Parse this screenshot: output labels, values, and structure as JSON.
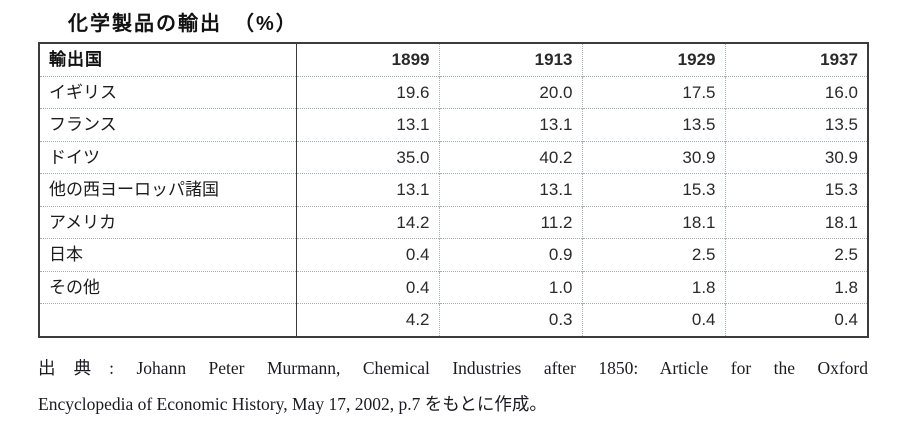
{
  "page": {
    "title": "化学製品の輸出　（%）"
  },
  "table": {
    "header": {
      "country": "輸出国",
      "years": [
        "1899",
        "1913",
        "1929",
        "1937"
      ]
    },
    "rows": [
      {
        "label": "イギリス",
        "values": [
          "19.6",
          "20.0",
          "17.5",
          "16.0"
        ]
      },
      {
        "label": "フランス",
        "values": [
          "13.1",
          "13.1",
          "13.5",
          "13.5"
        ]
      },
      {
        "label": "ドイツ",
        "values": [
          "35.0",
          "40.2",
          "30.9",
          "30.9"
        ]
      },
      {
        "label": "他の西ヨーロッパ諸国",
        "values": [
          "13.1",
          "13.1",
          "15.3",
          "15.3"
        ]
      },
      {
        "label": "アメリカ",
        "values": [
          "14.2",
          "11.2",
          "18.1",
          "18.1"
        ]
      },
      {
        "label": "日本",
        "values": [
          "0.4",
          "0.9",
          "2.5",
          "2.5"
        ]
      },
      {
        "label": "その他",
        "values": [
          "0.4",
          "1.0",
          "1.8",
          "1.8"
        ]
      },
      {
        "label": "",
        "values": [
          "4.2",
          "0.3",
          "0.4",
          "0.4"
        ]
      }
    ]
  },
  "source": {
    "line1": "出典: Johann Peter Murmann, Chemical Industries after 1850: Article for the Oxford",
    "line2": "Encyclopedia of Economic History, May 17, 2002, p.7 をもとに作成。"
  },
  "colors": {
    "text": "#1c1c1c",
    "outer_border": "#3c3c3c",
    "dotted_grid": "#a9b2ba",
    "background": "#ffffff"
  },
  "chart_data": {
    "type": "table",
    "title": "化学製品の輸出（%）",
    "categories": [
      "1899",
      "1913",
      "1929",
      "1937"
    ],
    "series": [
      {
        "name": "イギリス",
        "values": [
          19.6,
          20.0,
          17.5,
          16.0
        ]
      },
      {
        "name": "フランス",
        "values": [
          13.1,
          13.1,
          13.5,
          13.5
        ]
      },
      {
        "name": "ドイツ",
        "values": [
          35.0,
          40.2,
          30.9,
          30.9
        ]
      },
      {
        "name": "他の西ヨーロッパ諸国",
        "values": [
          13.1,
          13.1,
          15.3,
          15.3
        ]
      },
      {
        "name": "アメリカ",
        "values": [
          14.2,
          11.2,
          18.1,
          18.1
        ]
      },
      {
        "name": "日本",
        "values": [
          0.4,
          0.9,
          2.5,
          2.5
        ]
      },
      {
        "name": "その他",
        "values": [
          0.4,
          1.0,
          1.8,
          1.8
        ]
      },
      {
        "name": "",
        "values": [
          4.2,
          0.3,
          0.4,
          0.4
        ]
      }
    ]
  }
}
